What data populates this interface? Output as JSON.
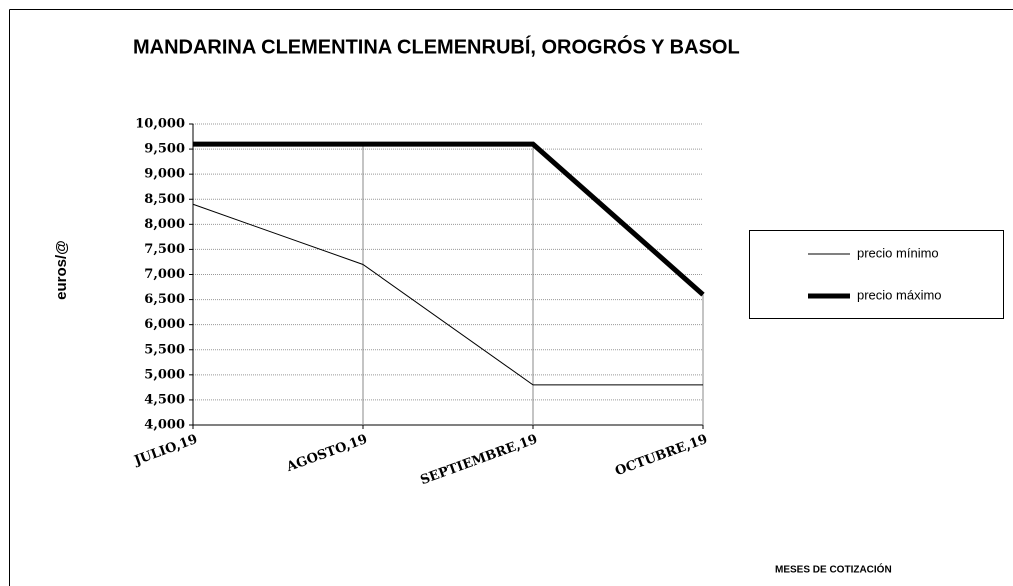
{
  "chart_data": {
    "type": "line",
    "title": "MANDARINA CLEMENTINA CLEMENRUBÍ, OROGRÓS Y BASOL",
    "y_label": "euros/@",
    "x_label": "MESES DE COTIZACIÓN",
    "categories": [
      "JULIO,19",
      "AGOSTO,19",
      "SEPTIEMBRE,19",
      "OCTUBRE,19"
    ],
    "series": [
      {
        "name": "precio mínimo",
        "color": "#000000",
        "width": 1,
        "values": [
          8.4,
          7.2,
          4.8,
          4.8
        ]
      },
      {
        "name": "precio máximo",
        "color": "#000000",
        "width": 5,
        "values": [
          9.6,
          9.6,
          9.6,
          6.6
        ]
      }
    ],
    "ylim": [
      4,
      10
    ],
    "yticks": [
      {
        "value": 4,
        "label": "4,000"
      },
      {
        "value": 4.5,
        "label": "4,500"
      },
      {
        "value": 5,
        "label": "5,000"
      },
      {
        "value": 5.5,
        "label": "5,500"
      },
      {
        "value": 6,
        "label": "6,000"
      },
      {
        "value": 6.5,
        "label": "6,500"
      },
      {
        "value": 7,
        "label": "7,000"
      },
      {
        "value": 7.5,
        "label": "7,500"
      },
      {
        "value": 8,
        "label": "8,000"
      },
      {
        "value": 8.5,
        "label": "8,500"
      },
      {
        "value": 9,
        "label": "9,000"
      },
      {
        "value": 9.5,
        "label": "9,500"
      },
      {
        "value": 10,
        "label": "10,000"
      }
    ],
    "grid": true,
    "legend": "right"
  }
}
